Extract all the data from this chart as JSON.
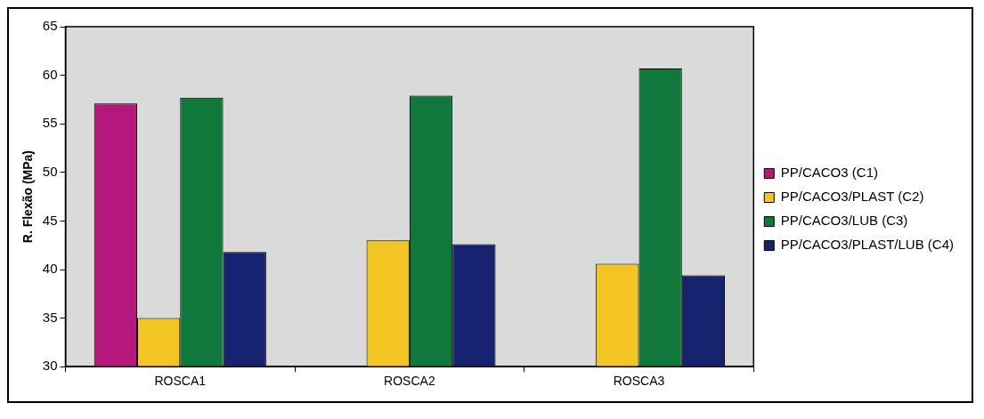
{
  "chart_data": {
    "type": "bar",
    "ylabel": "R. Flexão (MPa)",
    "categories": [
      "ROSCA1",
      "ROSCA2",
      "ROSCA3"
    ],
    "series": [
      {
        "name": "PP/CACO3 (C1)",
        "color": "#b5177a",
        "values": [
          57.1,
          null,
          null
        ]
      },
      {
        "name": "PP/CACO3/PLAST (C2)",
        "color": "#f2c522",
        "values": [
          35.0,
          43.0,
          40.6
        ]
      },
      {
        "name": "PP/CACO3/LUB (C3)",
        "color": "#10783a",
        "values": [
          57.7,
          57.9,
          60.7
        ]
      },
      {
        "name": "PP/CACO3/PLAST/LUB (C4)",
        "color": "#16236e",
        "values": [
          41.8,
          42.6,
          39.4
        ]
      }
    ],
    "ylim": [
      30,
      65
    ],
    "yticks": [
      30,
      35,
      40,
      45,
      50,
      55,
      60,
      65
    ],
    "grid": false,
    "legend": "right"
  }
}
